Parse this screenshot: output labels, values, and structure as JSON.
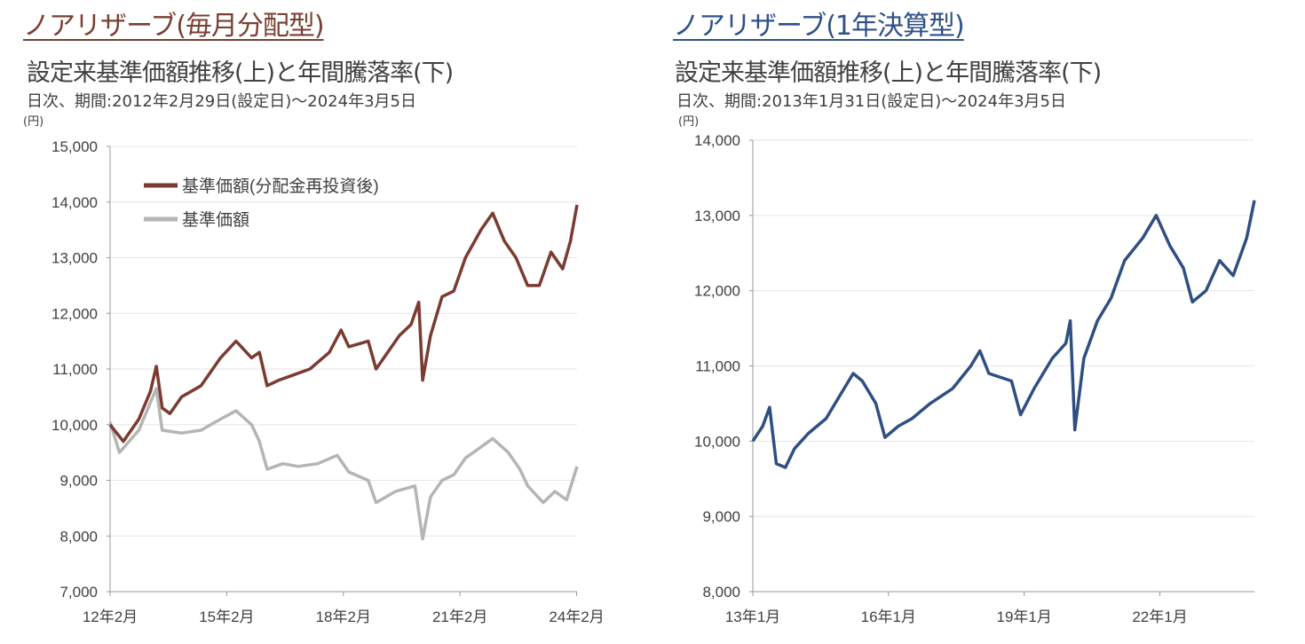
{
  "colors": {
    "left_title": "#7b3f33",
    "right_title": "#2f5089",
    "reinvested": "#7a3b30",
    "base": "#b5b5b5",
    "one_year": "#2f4f82",
    "grid": "#e6e6e6"
  },
  "chart_data": [
    {
      "type": "line",
      "fund_title": "ノアリザーブ(毎月分配型)",
      "title": "設定来基準価額推移(上)と年間騰落率(下)",
      "subtitle": "日次、期間:2012年2月29日(設定日)～2024年3月5日",
      "ylabel": "(円)",
      "ylim": [
        7000,
        15000
      ],
      "xlim": [
        2012.16,
        2024.17
      ],
      "yticks": [
        7000,
        8000,
        9000,
        10000,
        11000,
        12000,
        13000,
        14000,
        15000
      ],
      "ytick_labels": [
        "7,000",
        "8,000",
        "9,000",
        "10,000",
        "11,000",
        "12,000",
        "13,000",
        "14,000",
        "15,000"
      ],
      "xticks": [
        2012.16,
        2015.16,
        2018.16,
        2021.16,
        2024.16
      ],
      "xtick_labels": [
        "12年2月",
        "15年2月",
        "18年2月",
        "21年2月",
        "24年2月"
      ],
      "grid": true,
      "legend_position": "top-left",
      "series": [
        {
          "name": "基準価額(分配金再投資後)",
          "color_key": "reinvested",
          "x": [
            2012.16,
            2012.5,
            2012.9,
            2013.2,
            2013.35,
            2013.5,
            2013.7,
            2014.0,
            2014.5,
            2014.8,
            2015.0,
            2015.4,
            2015.8,
            2016.0,
            2016.2,
            2016.5,
            2016.9,
            2017.3,
            2017.8,
            2018.1,
            2018.3,
            2018.8,
            2019.0,
            2019.3,
            2019.6,
            2019.9,
            2020.1,
            2020.2,
            2020.4,
            2020.7,
            2021.0,
            2021.3,
            2021.7,
            2022.0,
            2022.3,
            2022.6,
            2022.9,
            2023.2,
            2023.5,
            2023.8,
            2024.0,
            2024.17
          ],
          "y": [
            10000,
            9700,
            10100,
            10600,
            11050,
            10300,
            10200,
            10500,
            10700,
            11000,
            11200,
            11500,
            11200,
            11300,
            10700,
            10800,
            10900,
            11000,
            11300,
            11700,
            11400,
            11500,
            11000,
            11300,
            11600,
            11800,
            12200,
            10800,
            11600,
            12300,
            12400,
            13000,
            13500,
            13800,
            13300,
            13000,
            12500,
            12500,
            13100,
            12800,
            13300,
            13950
          ]
        },
        {
          "name": "基準価額",
          "color_key": "base",
          "x": [
            2012.16,
            2012.4,
            2012.9,
            2013.2,
            2013.35,
            2013.5,
            2014.0,
            2014.5,
            2015.0,
            2015.4,
            2015.8,
            2016.0,
            2016.2,
            2016.6,
            2017.0,
            2017.5,
            2018.0,
            2018.3,
            2018.8,
            2019.0,
            2019.5,
            2020.0,
            2020.2,
            2020.4,
            2020.7,
            2021.0,
            2021.3,
            2021.7,
            2022.0,
            2022.4,
            2022.7,
            2022.9,
            2023.3,
            2023.6,
            2023.9,
            2024.17
          ],
          "y": [
            10050,
            9500,
            9900,
            10400,
            10650,
            9900,
            9850,
            9900,
            10100,
            10250,
            10000,
            9700,
            9200,
            9300,
            9250,
            9300,
            9450,
            9150,
            9000,
            8600,
            8800,
            8900,
            7950,
            8700,
            9000,
            9100,
            9400,
            9600,
            9750,
            9500,
            9200,
            8900,
            8600,
            8800,
            8650,
            9250
          ]
        }
      ]
    },
    {
      "type": "line",
      "fund_title": "ノアリザーブ(1年決算型)",
      "title": "設定来基準価額推移(上)と年間騰落率(下)",
      "subtitle": "日次、期間:2013年1月31日(設定日)～2024年3月5日",
      "ylabel": "(円)",
      "ylim": [
        8000,
        14000
      ],
      "xlim": [
        2013.08,
        2024.17
      ],
      "yticks": [
        8000,
        9000,
        10000,
        11000,
        12000,
        13000,
        14000
      ],
      "ytick_labels": [
        "8,000",
        "9,000",
        "10,000",
        "11,000",
        "12,000",
        "13,000",
        "14,000"
      ],
      "xticks": [
        2013.08,
        2016.08,
        2019.08,
        2022.08
      ],
      "xtick_labels": [
        "13年1月",
        "16年1月",
        "19年1月",
        "22年1月"
      ],
      "grid": true,
      "series": [
        {
          "name": "基準価額",
          "color_key": "one_year",
          "x": [
            2013.08,
            2013.3,
            2013.45,
            2013.6,
            2013.8,
            2014.0,
            2014.3,
            2014.7,
            2015.0,
            2015.3,
            2015.5,
            2015.8,
            2016.0,
            2016.3,
            2016.6,
            2017.0,
            2017.5,
            2017.9,
            2018.1,
            2018.3,
            2018.8,
            2019.0,
            2019.3,
            2019.7,
            2020.0,
            2020.1,
            2020.2,
            2020.4,
            2020.7,
            2021.0,
            2021.3,
            2021.7,
            2022.0,
            2022.3,
            2022.6,
            2022.8,
            2023.1,
            2023.4,
            2023.7,
            2024.0,
            2024.17
          ],
          "y": [
            10000,
            10200,
            10450,
            9700,
            9650,
            9900,
            10100,
            10300,
            10600,
            10900,
            10800,
            10500,
            10050,
            10200,
            10300,
            10500,
            10700,
            11000,
            11200,
            10900,
            10800,
            10350,
            10700,
            11100,
            11300,
            11600,
            10150,
            11100,
            11600,
            11900,
            12400,
            12700,
            13000,
            12600,
            12300,
            11850,
            12000,
            12400,
            12200,
            12700,
            13200
          ]
        }
      ]
    }
  ]
}
